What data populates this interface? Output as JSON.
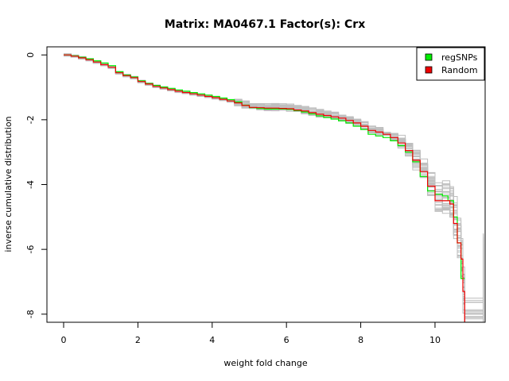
{
  "chart_data": {
    "type": "line",
    "title": "Matrix: MA0467.1 Factor(s): Crx",
    "xlabel": "weight fold change",
    "ylabel": "inverse cumulative distribution",
    "xlim": [
      -0.45,
      11.35
    ],
    "ylim": [
      -8.25,
      0.25
    ],
    "x_ticks": [
      0,
      2,
      4,
      6,
      8,
      10
    ],
    "y_ticks": [
      0,
      -2,
      -4,
      -6,
      -8
    ],
    "x_tick_labels": [
      "0",
      "2",
      "4",
      "6",
      "8",
      "10"
    ],
    "y_tick_labels": [
      "0",
      "-2",
      "-4",
      "-6",
      "-8"
    ],
    "legend": {
      "position": "top-right",
      "entries": [
        {
          "label": "regSNPs",
          "color": "#00ee00"
        },
        {
          "label": "Random",
          "color": "#ee0000"
        }
      ]
    },
    "background_series_color": "#bebebe",
    "background_series_count": 30,
    "series": [
      {
        "name": "regSNPs",
        "color": "#00ee00",
        "x": [
          0,
          0.2,
          0.4,
          0.6,
          0.8,
          1.0,
          1.2,
          1.4,
          1.6,
          1.8,
          2.0,
          2.2,
          2.4,
          2.6,
          2.8,
          3.0,
          3.2,
          3.4,
          3.6,
          3.8,
          4.0,
          4.2,
          4.4,
          4.6,
          4.8,
          5.0,
          5.2,
          5.4,
          5.6,
          5.8,
          6.0,
          6.2,
          6.4,
          6.6,
          6.8,
          7.0,
          7.2,
          7.4,
          7.6,
          7.8,
          8.0,
          8.2,
          8.4,
          8.6,
          8.8,
          9.0,
          9.2,
          9.4,
          9.6,
          9.8,
          10.0,
          10.2,
          10.35,
          10.5,
          10.6,
          10.7,
          10.8
        ],
        "y": [
          0,
          -0.03,
          -0.07,
          -0.12,
          -0.18,
          -0.25,
          -0.33,
          -0.52,
          -0.62,
          -0.68,
          -0.8,
          -0.88,
          -0.94,
          -0.99,
          -1.03,
          -1.08,
          -1.12,
          -1.16,
          -1.2,
          -1.24,
          -1.28,
          -1.33,
          -1.38,
          -1.45,
          -1.55,
          -1.63,
          -1.65,
          -1.67,
          -1.67,
          -1.67,
          -1.68,
          -1.72,
          -1.76,
          -1.82,
          -1.88,
          -1.93,
          -1.98,
          -2.03,
          -2.1,
          -2.2,
          -2.3,
          -2.45,
          -2.5,
          -2.55,
          -2.65,
          -2.8,
          -3.0,
          -3.3,
          -3.75,
          -4.2,
          -4.3,
          -4.35,
          -4.5,
          -5.0,
          -5.8,
          -6.9,
          -6.9
        ]
      },
      {
        "name": "Random",
        "color": "#ee0000",
        "x": [
          0,
          0.2,
          0.4,
          0.6,
          0.8,
          1.0,
          1.2,
          1.4,
          1.6,
          1.8,
          2.0,
          2.2,
          2.4,
          2.6,
          2.8,
          3.0,
          3.2,
          3.4,
          3.6,
          3.8,
          4.0,
          4.2,
          4.4,
          4.6,
          4.8,
          5.0,
          5.2,
          5.4,
          5.6,
          5.8,
          6.0,
          6.2,
          6.4,
          6.6,
          6.8,
          7.0,
          7.2,
          7.4,
          7.6,
          7.8,
          8.0,
          8.2,
          8.4,
          8.6,
          8.8,
          9.0,
          9.2,
          9.4,
          9.6,
          9.8,
          10.0,
          10.2,
          10.4,
          10.5,
          10.6,
          10.7,
          10.75,
          10.8
        ],
        "y": [
          0,
          -0.04,
          -0.09,
          -0.15,
          -0.22,
          -0.3,
          -0.38,
          -0.55,
          -0.64,
          -0.7,
          -0.82,
          -0.9,
          -0.97,
          -1.02,
          -1.07,
          -1.12,
          -1.16,
          -1.2,
          -1.24,
          -1.28,
          -1.32,
          -1.37,
          -1.42,
          -1.48,
          -1.56,
          -1.62,
          -1.63,
          -1.64,
          -1.64,
          -1.65,
          -1.66,
          -1.7,
          -1.73,
          -1.78,
          -1.83,
          -1.87,
          -1.91,
          -1.95,
          -2.02,
          -2.1,
          -2.2,
          -2.33,
          -2.38,
          -2.45,
          -2.55,
          -2.72,
          -2.95,
          -3.25,
          -3.6,
          -4.05,
          -4.5,
          -4.5,
          -4.6,
          -5.2,
          -5.8,
          -6.3,
          -7.3,
          -8.25
        ]
      }
    ]
  }
}
